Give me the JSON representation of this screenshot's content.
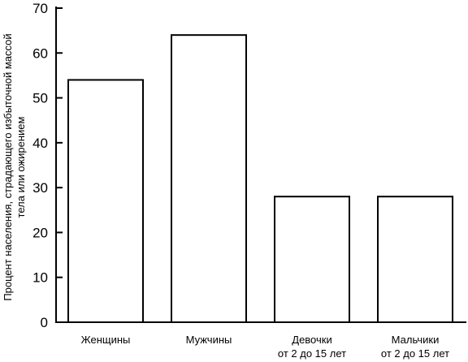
{
  "chart_data": {
    "type": "bar",
    "categories": [
      [
        "Женщины"
      ],
      [
        "Мужчины"
      ],
      [
        "Девочки",
        "от 2 до 15 лет"
      ],
      [
        "Мальчики",
        "от 2 до 15 лет"
      ]
    ],
    "values": [
      54,
      64,
      28,
      28
    ],
    "ylabel": [
      "Процент населения, страдающего избыточной массой",
      "тела или ожирением"
    ],
    "yticks": [
      0,
      10,
      20,
      30,
      40,
      50,
      60,
      70
    ],
    "ylim": [
      0,
      70
    ],
    "grid": false,
    "legend": false,
    "colors": {
      "bar_fill": "#ffffff",
      "bar_stroke": "#000000",
      "axis": "#000000",
      "text": "#000000"
    }
  }
}
